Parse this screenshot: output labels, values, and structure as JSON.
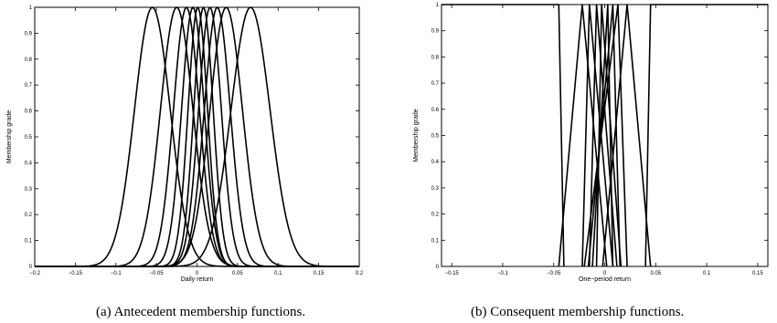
{
  "chart_data": [
    {
      "type": "line",
      "xlabel": "Daily return",
      "ylabel": "Membership grade",
      "xlim": [
        -0.2,
        0.2
      ],
      "ylim": [
        0,
        1
      ],
      "xticks": [
        "-0.2",
        "-0.15",
        "-0.1",
        "-0.05",
        "0",
        "0.05",
        "0.1",
        "0.15",
        "0.2"
      ],
      "yticks": [
        "0",
        "0.1",
        "0.2",
        "0.3",
        "0.4",
        "0.5",
        "0.6",
        "0.7",
        "0.8",
        "0.9",
        "1"
      ],
      "grid": false,
      "caption": "(a)  Antecedent membership functions.",
      "functions": "gaussian",
      "series": [
        {
          "center": -0.055,
          "sigma": 0.022
        },
        {
          "center": -0.025,
          "sigma": 0.02
        },
        {
          "center": -0.013,
          "sigma": 0.016
        },
        {
          "center": -0.005,
          "sigma": 0.014
        },
        {
          "center": 0.001,
          "sigma": 0.012
        },
        {
          "center": 0.008,
          "sigma": 0.012
        },
        {
          "center": 0.016,
          "sigma": 0.014
        },
        {
          "center": 0.025,
          "sigma": 0.016
        },
        {
          "center": 0.036,
          "sigma": 0.02
        },
        {
          "center": 0.066,
          "sigma": 0.024
        }
      ]
    },
    {
      "type": "line",
      "xlabel": "One−period return",
      "ylabel": "Membership grade",
      "xlim": [
        -0.16,
        0.16
      ],
      "ylim": [
        0,
        1
      ],
      "xticks": [
        "-0.15",
        "-0.1",
        "-0.05",
        "0",
        "0.05",
        "0.1",
        "0.15"
      ],
      "yticks": [
        "0",
        "0.1",
        "0.2",
        "0.3",
        "0.4",
        "0.5",
        "0.6",
        "0.7",
        "0.8",
        "0.9",
        "1"
      ],
      "grid": false,
      "caption": "(b)  Consequent membership functions.",
      "functions": "triangular",
      "series": [
        {
          "points": [
            [
              -0.16,
              1
            ],
            [
              -0.045,
              1
            ],
            [
              -0.04,
              0
            ]
          ]
        },
        {
          "points": [
            [
              -0.045,
              0
            ],
            [
              -0.022,
              1
            ],
            [
              0.002,
              0
            ]
          ]
        },
        {
          "points": [
            [
              -0.022,
              0
            ],
            [
              -0.015,
              1
            ],
            [
              0.008,
              0
            ]
          ]
        },
        {
          "points": [
            [
              -0.015,
              0
            ],
            [
              -0.008,
              1
            ],
            [
              0.012,
              0
            ]
          ]
        },
        {
          "points": [
            [
              -0.008,
              0
            ],
            [
              -0.003,
              1
            ],
            [
              0.016,
              0
            ]
          ]
        },
        {
          "points": [
            [
              -0.012,
              0
            ],
            [
              0.003,
              1
            ],
            [
              0.008,
              0
            ]
          ]
        },
        {
          "points": [
            [
              -0.016,
              0
            ],
            [
              0.008,
              1
            ],
            [
              0.015,
              0
            ]
          ]
        },
        {
          "points": [
            [
              -0.02,
              0
            ],
            [
              0.013,
              1
            ],
            [
              0.022,
              0
            ]
          ]
        },
        {
          "points": [
            [
              -0.002,
              0
            ],
            [
              0.022,
              1
            ],
            [
              0.045,
              0
            ]
          ]
        },
        {
          "points": [
            [
              0.04,
              0
            ],
            [
              0.045,
              1
            ],
            [
              0.16,
              1
            ]
          ]
        }
      ]
    }
  ]
}
